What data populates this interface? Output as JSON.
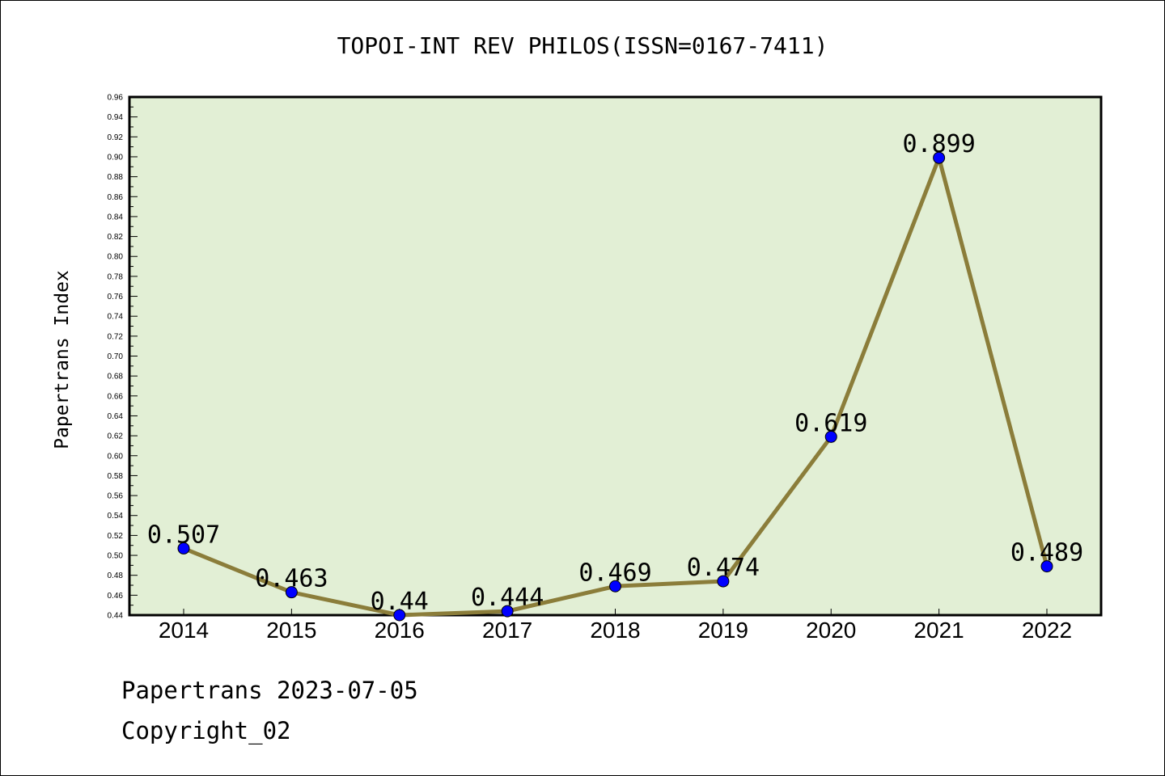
{
  "chart_data": {
    "type": "line",
    "title": "TOPOI-INT REV PHILOS(ISSN=0167-7411)",
    "ylabel": "Papertrans Index",
    "xlabel": "",
    "categories": [
      "2014",
      "2015",
      "2016",
      "2017",
      "2018",
      "2019",
      "2020",
      "2021",
      "2022"
    ],
    "values": [
      0.507,
      0.463,
      0.44,
      0.444,
      0.469,
      0.474,
      0.619,
      0.899,
      0.489
    ],
    "data_labels": [
      "0.507",
      "0.463",
      "0.44",
      "0.444",
      "0.469",
      "0.474",
      "0.619",
      "0.899",
      "0.489"
    ],
    "ylim": [
      0.44,
      0.96
    ],
    "yticks": [
      "0.44",
      "0.46",
      "0.48",
      "0.50",
      "0.52",
      "0.54",
      "0.56",
      "0.58",
      "0.60",
      "0.62",
      "0.64",
      "0.66",
      "0.68",
      "0.70",
      "0.72",
      "0.74",
      "0.76",
      "0.78",
      "0.80",
      "0.82",
      "0.84",
      "0.86",
      "0.88",
      "0.90",
      "0.92",
      "0.94",
      "0.96"
    ],
    "grid": false,
    "legend": "none",
    "colors": {
      "plot_bg": "#e2efd5",
      "line": "#8b7d3a",
      "marker": "#0000ff"
    }
  },
  "footer": {
    "line1": "Papertrans 2023-07-05",
    "line2": "Copyright_02"
  }
}
